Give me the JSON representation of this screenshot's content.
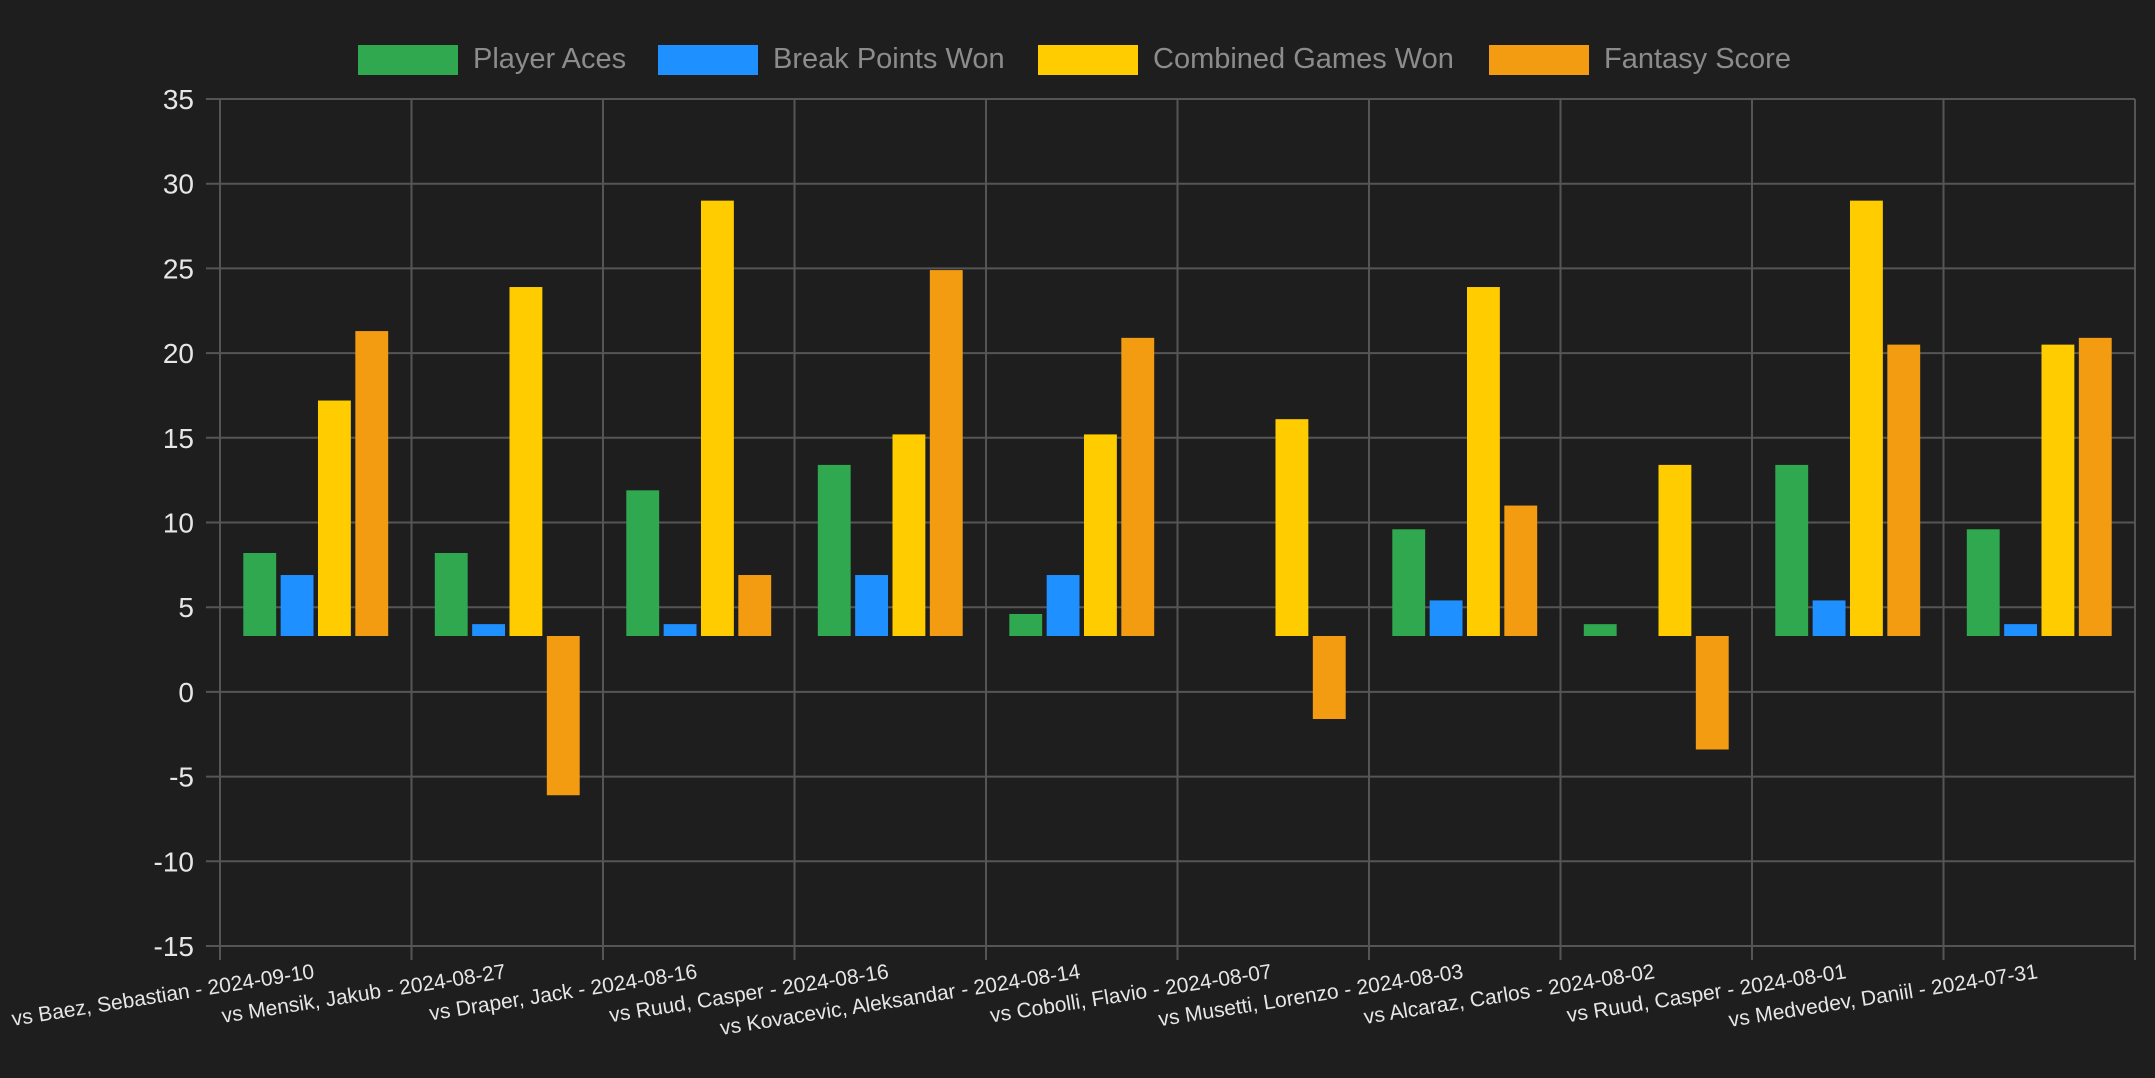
{
  "chart_data": {
    "type": "bar",
    "categories": [
      "vs Baez, Sebastian - 2024-09-10",
      "vs Mensik, Jakub - 2024-08-27",
      "vs Draper, Jack - 2024-08-16",
      "vs Ruud, Casper - 2024-08-16",
      "vs Kovacevic, Aleksandar - 2024-08-14",
      "vs Cobolli, Flavio - 2024-08-07",
      "vs Musetti, Lorenzo - 2024-08-03",
      "vs Alcaraz, Carlos - 2024-08-02",
      "vs Ruud, Casper - 2024-08-01",
      "vs Medvedev, Daniil - 2024-07-31"
    ],
    "series": [
      {
        "name": "Player Aces",
        "color": "#2fa84f",
        "values": [
          4.9,
          4.9,
          8.6,
          10.1,
          1.3,
          0,
          6.3,
          0.7,
          10.1,
          6.3
        ]
      },
      {
        "name": "Break Points Won",
        "color": "#1e90ff",
        "values": [
          3.6,
          0.7,
          0.7,
          3.6,
          3.6,
          0,
          2.1,
          0,
          2.1,
          0.7
        ]
      },
      {
        "name": "Combined Games Won",
        "color": "#ffcc00",
        "values": [
          13.9,
          20.6,
          25.7,
          11.9,
          11.9,
          12.8,
          20.6,
          10.1,
          25.7,
          17.2
        ]
      },
      {
        "name": "Fantasy Score",
        "color": "#f39c12",
        "values": [
          18.0,
          -9.4,
          3.6,
          21.6,
          17.6,
          -4.9,
          7.7,
          -6.7,
          17.2,
          17.6
        ]
      }
    ],
    "bar_baseline": 3.3,
    "ylim": [
      -15,
      35
    ],
    "yticks": [
      "35",
      "30",
      "25",
      "20",
      "15",
      "10",
      "5",
      "0",
      "-5",
      "-10",
      "-15"
    ],
    "title": "",
    "xlabel": "",
    "ylabel": "",
    "grid": true,
    "legend_position": "top-center",
    "colors": {
      "background": "#1e1e1e",
      "grid": "#555555",
      "text": "#e6e6e6",
      "legend_text": "#8c8c8c"
    }
  }
}
